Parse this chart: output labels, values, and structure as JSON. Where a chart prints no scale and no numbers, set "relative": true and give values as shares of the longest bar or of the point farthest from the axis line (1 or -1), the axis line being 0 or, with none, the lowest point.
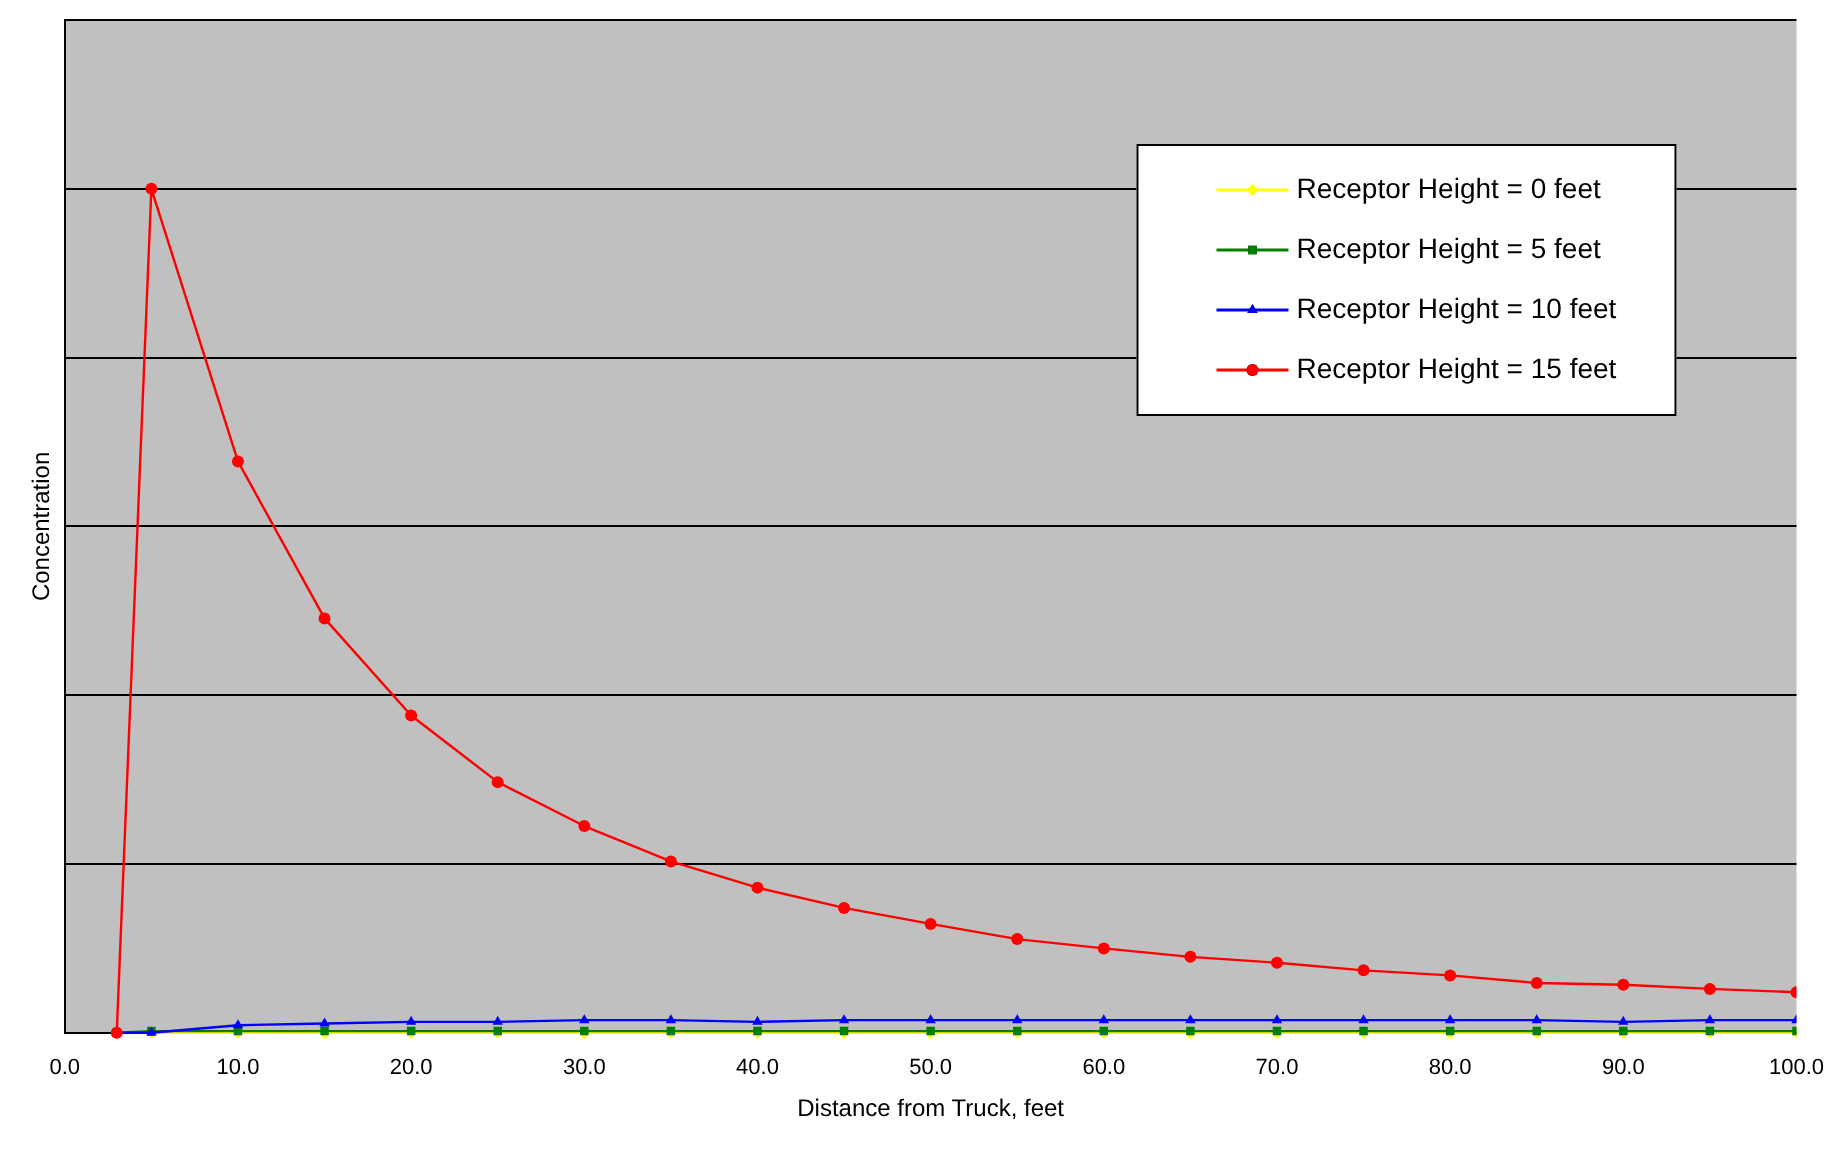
{
  "chart_data": {
    "type": "line",
    "relative": true,
    "xlabel": "Distance from Truck, feet",
    "ylabel": "Concentration",
    "x": [
      3,
      5,
      10,
      15,
      20,
      25,
      30,
      35,
      40,
      45,
      50,
      55,
      60,
      65,
      70,
      75,
      80,
      85,
      90,
      95,
      100
    ],
    "xlim": [
      0,
      100
    ],
    "xticks": [
      {
        "value": 0,
        "label": "0.0"
      },
      {
        "value": 10,
        "label": "10.0"
      },
      {
        "value": 20,
        "label": "20.0"
      },
      {
        "value": 30,
        "label": "30.0"
      },
      {
        "value": 40,
        "label": "40.0"
      },
      {
        "value": 50,
        "label": "50.0"
      },
      {
        "value": 60,
        "label": "60.0"
      },
      {
        "value": 70,
        "label": "70.0"
      },
      {
        "value": 80,
        "label": "80.0"
      },
      {
        "value": 90,
        "label": "90.0"
      },
      {
        "value": 100,
        "label": "100.0"
      }
    ],
    "series": [
      {
        "name": "Receptor Height = 0 feet",
        "color": "#ffff00",
        "marker": "diamond",
        "values": [
          0,
          0,
          0,
          0,
          0,
          0,
          0,
          0,
          0,
          0,
          0,
          0,
          0,
          0,
          0,
          0,
          0,
          0,
          0,
          0,
          0
        ]
      },
      {
        "name": "Receptor Height = 5 feet",
        "color": "#008000",
        "marker": "square",
        "values": [
          0,
          0.002,
          0.002,
          0.002,
          0.002,
          0.002,
          0.002,
          0.002,
          0.002,
          0.002,
          0.002,
          0.002,
          0.002,
          0.002,
          0.002,
          0.002,
          0.002,
          0.002,
          0.002,
          0.002,
          0.002
        ]
      },
      {
        "name": "Receptor Height = 10 feet",
        "color": "#0000ff",
        "marker": "triangle",
        "values": [
          0,
          0,
          0.009,
          0.011,
          0.013,
          0.013,
          0.015,
          0.015,
          0.013,
          0.015,
          0.015,
          0.015,
          0.015,
          0.015,
          0.015,
          0.015,
          0.015,
          0.015,
          0.013,
          0.015,
          0.015
        ]
      },
      {
        "name": "Receptor Height = 15 feet",
        "color": "#ff0000",
        "marker": "circle",
        "values": [
          0,
          1,
          0.677,
          0.491,
          0.376,
          0.297,
          0.245,
          0.203,
          0.172,
          0.148,
          0.129,
          0.111,
          0.1,
          0.09,
          0.083,
          0.074,
          0.068,
          0.059,
          0.057,
          0.052,
          0.048
        ]
      }
    ],
    "grid": "y",
    "legend": "top right",
    "line_style": "solid"
  }
}
